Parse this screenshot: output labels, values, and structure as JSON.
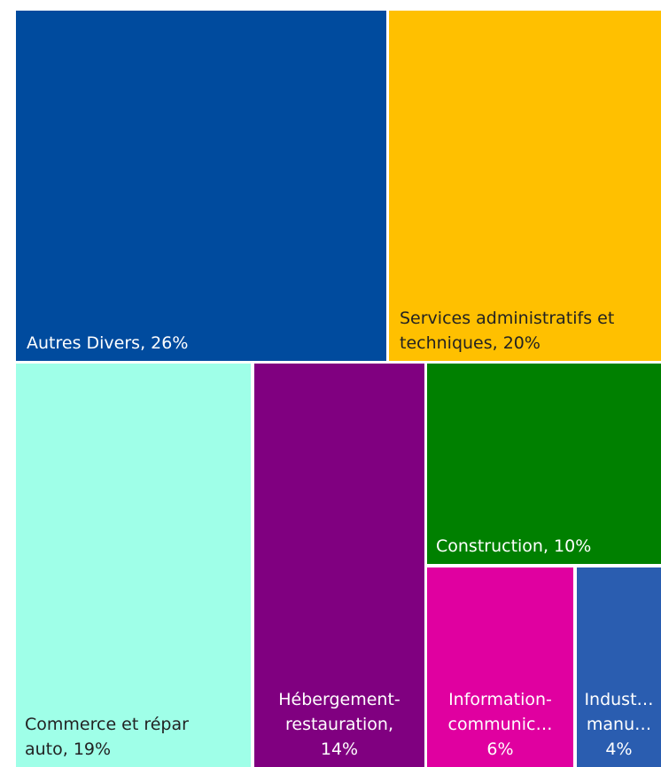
{
  "chart_data": {
    "type": "treemap",
    "items": [
      {
        "name": "Autres Divers",
        "value": 26,
        "label_lines": [
          "Autres Divers, 26%"
        ],
        "color": "#004B9E",
        "text_color": "#ffffff"
      },
      {
        "name": "Services administratifs et techniques",
        "value": 20,
        "label_lines": [
          "Services administratifs et",
          "techniques, 20%"
        ],
        "color": "#FFC000",
        "text_color": "#222222"
      },
      {
        "name": "Commerce et répar auto",
        "value": 19,
        "label_lines": [
          "Commerce et répar",
          "auto, 19%"
        ],
        "color": "#9FFFE8",
        "text_color": "#222222"
      },
      {
        "name": "Hébergement-restauration",
        "value": 14,
        "label_lines": [
          "Hébergement-",
          "restauration,",
          "14%"
        ],
        "color": "#800080",
        "text_color": "#ffffff"
      },
      {
        "name": "Construction",
        "value": 10,
        "label_lines": [
          "Construction, 10%"
        ],
        "color": "#008000",
        "text_color": "#ffffff"
      },
      {
        "name": "Information-communic…",
        "value": 6,
        "label_lines": [
          "Information-",
          "communic…",
          "6%"
        ],
        "color": "#E000A0",
        "text_color": "#ffffff"
      },
      {
        "name": "Indust… manu…",
        "value": 4,
        "label_lines": [
          "Indust…",
          "manu…",
          "4%"
        ],
        "color": "#2A5DB0",
        "text_color": "#ffffff"
      }
    ]
  }
}
